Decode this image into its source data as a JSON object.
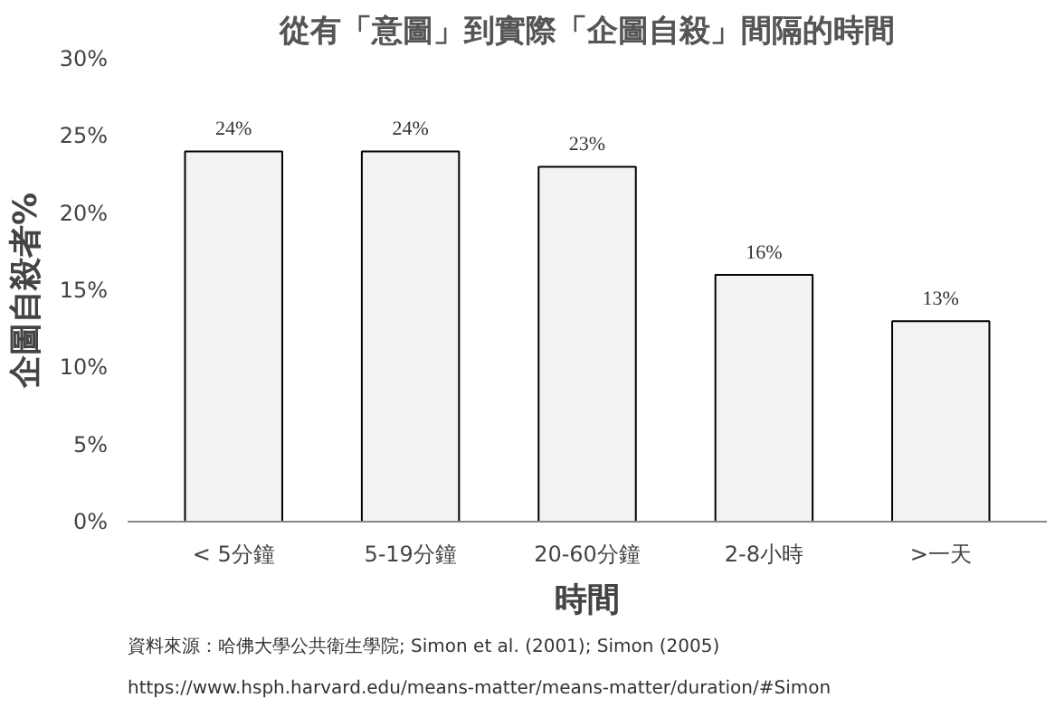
{
  "chart_data": {
    "type": "bar",
    "title": "從有「意圖」到實際「企圖自殺」間隔的時間",
    "xlabel": "時間",
    "ylabel": "企圖自殺者%",
    "categories": [
      "< 5分鐘",
      "5-19分鐘",
      "20-60分鐘",
      "2-8小時",
      ">一天"
    ],
    "values": [
      24,
      24,
      23,
      16,
      13
    ],
    "value_labels": [
      "24%",
      "24%",
      "23%",
      "16%",
      "13%"
    ],
    "color": "#f2f2f2",
    "ylim": [
      0,
      30
    ],
    "yticks": [
      {
        "value": 0,
        "label": "0%"
      },
      {
        "value": 5,
        "label": "5%"
      },
      {
        "value": 10,
        "label": "10%"
      },
      {
        "value": 15,
        "label": "15%"
      },
      {
        "value": 20,
        "label": "20%"
      },
      {
        "value": 25,
        "label": "25%"
      },
      {
        "value": 30,
        "label": "30%"
      }
    ],
    "grid": false,
    "annotations": [
      "資料來源：哈佛大學公共衛生學院; Simon et al. (2001); Simon (2005)",
      "https://www.hsph.harvard.edu/means-matter/means-matter/duration/#Simon"
    ]
  }
}
